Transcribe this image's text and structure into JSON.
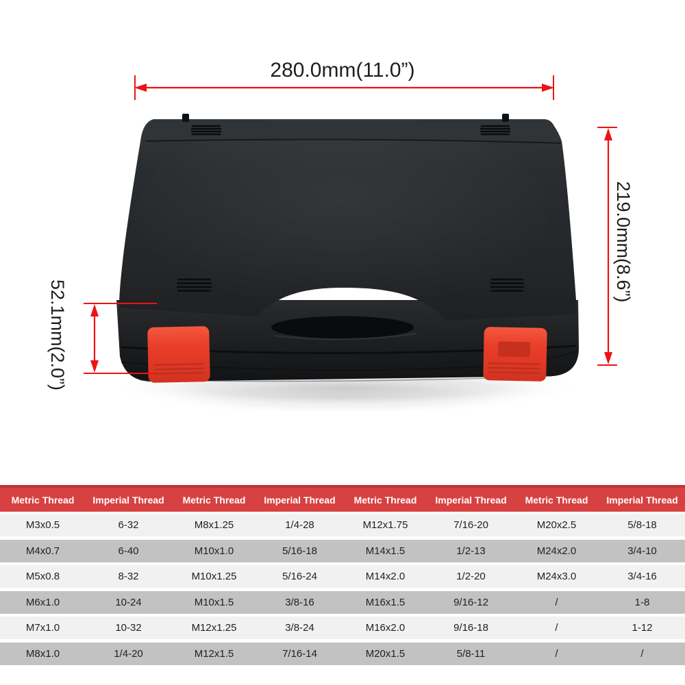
{
  "dimensions": {
    "width_label": "280.0mm(11.0”)",
    "height_label": "219.0mm(8.6”)",
    "depth_label": "52.1mm(2.0”)"
  },
  "colors": {
    "dimension_red": "#ee1313",
    "table_header_red": "#d84141",
    "table_row_light": "#f1f1f1",
    "table_row_gray": "#c2c2c2",
    "latch_red": "#e93e2a",
    "case_black": "#232528"
  },
  "table": {
    "columns": [
      "Metric Thread",
      "Imperial Thread",
      "Metric Thread",
      "Imperial Thread",
      "Metric Thread",
      "Imperial Thread",
      "Metric Thread",
      "Imperial Thread"
    ],
    "rows": [
      [
        "M3x0.5",
        "6-32",
        "M8x1.25",
        "1/4-28",
        "M12x1.75",
        "7/16-20",
        "M20x2.5",
        "5/8-18"
      ],
      [
        "M4x0.7",
        "6-40",
        "M10x1.0",
        "5/16-18",
        "M14x1.5",
        "1/2-13",
        "M24x2.0",
        "3/4-10"
      ],
      [
        "M5x0.8",
        "8-32",
        "M10x1.25",
        "5/16-24",
        "M14x2.0",
        "1/2-20",
        "M24x3.0",
        "3/4-16"
      ],
      [
        "M6x1.0",
        "10-24",
        "M10x1.5",
        "3/8-16",
        "M16x1.5",
        "9/16-12",
        "/",
        "1-8"
      ],
      [
        "M7x1.0",
        "10-32",
        "M12x1.25",
        "3/8-24",
        "M16x2.0",
        "9/16-18",
        "/",
        "1-12"
      ],
      [
        "M8x1.0",
        "1/4-20",
        "M12x1.5",
        "7/16-14",
        "M20x1.5",
        "5/8-11",
        "/",
        "/"
      ]
    ]
  }
}
